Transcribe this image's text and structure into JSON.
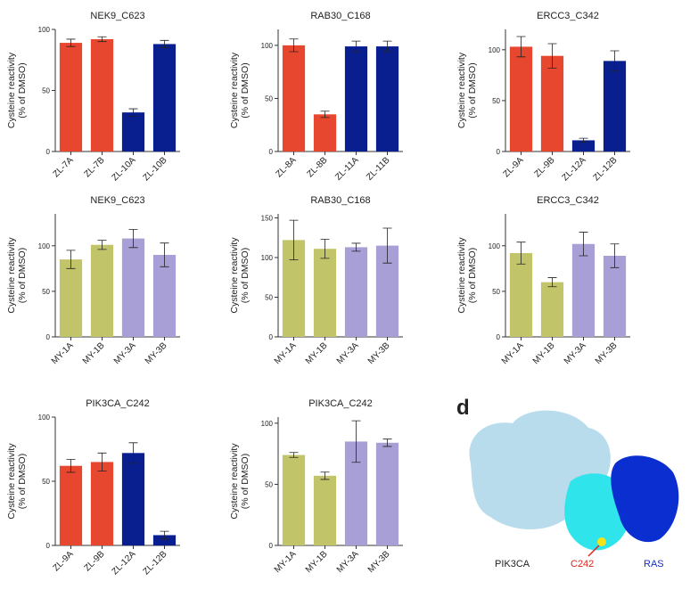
{
  "chart_data": [
    {
      "type": "bar",
      "title": "NEK9_C623",
      "ylabel": [
        "Cysteine reactivity",
        "(% of DMSO)"
      ],
      "categories": [
        "ZL-7A",
        "ZL-7B",
        "ZL-10A",
        "ZL-10B"
      ],
      "values": [
        89,
        92,
        32,
        88
      ],
      "errors": [
        3,
        2,
        3,
        3
      ],
      "colors": [
        "#e8472f",
        "#e8472f",
        "#0a1f8f",
        "#0a1f8f"
      ],
      "ylim": [
        0,
        100
      ],
      "yticks": [
        0,
        50,
        100
      ]
    },
    {
      "type": "bar",
      "title": "RAB30_C168",
      "ylabel": [
        "Cysteine reactivity",
        "(% of DMSO)"
      ],
      "categories": [
        "ZL-8A",
        "ZL-8B",
        "ZL-11A",
        "ZL-11B"
      ],
      "values": [
        100,
        35,
        99,
        99
      ],
      "errors": [
        6,
        3,
        5,
        5
      ],
      "colors": [
        "#e8472f",
        "#e8472f",
        "#0a1f8f",
        "#0a1f8f"
      ],
      "ylim": [
        0,
        115
      ],
      "yticks": [
        0,
        50,
        100
      ]
    },
    {
      "type": "bar",
      "title": "ERCC3_C342",
      "ylabel": [
        "Cysteine reactivity",
        "(% of DMSO)"
      ],
      "categories": [
        "ZL-9A",
        "ZL-9B",
        "ZL-12A",
        "ZL-12B"
      ],
      "values": [
        103,
        94,
        11,
        89
      ],
      "errors": [
        10,
        12,
        2,
        10
      ],
      "colors": [
        "#e8472f",
        "#e8472f",
        "#0a1f8f",
        "#0a1f8f"
      ],
      "ylim": [
        0,
        120
      ],
      "yticks": [
        0,
        50,
        100
      ]
    },
    {
      "type": "bar",
      "title": "NEK9_C623",
      "ylabel": [
        "Cysteine reactivity",
        "(% of DMSO)"
      ],
      "categories": [
        "MY-1A",
        "MY-1B",
        "MY-3A",
        "MY-3B"
      ],
      "values": [
        85,
        101,
        108,
        90
      ],
      "errors": [
        10,
        5,
        10,
        13
      ],
      "colors": [
        "#c2c46a",
        "#c2c46a",
        "#a89fd6",
        "#a89fd6"
      ],
      "ylim": [
        0,
        135
      ],
      "yticks": [
        0,
        50,
        100
      ]
    },
    {
      "type": "bar",
      "title": "RAB30_C168",
      "ylabel": [
        "Cysteine reactivity",
        "(% of DMSO)"
      ],
      "categories": [
        "MY-1A",
        "MY-1B",
        "MY-3A",
        "MY-3B"
      ],
      "values": [
        122,
        111,
        113,
        115
      ],
      "errors": [
        25,
        12,
        5,
        22
      ],
      "colors": [
        "#c2c46a",
        "#c2c46a",
        "#a89fd6",
        "#a89fd6"
      ],
      "ylim": [
        0,
        155
      ],
      "yticks": [
        0,
        50,
        100,
        150
      ]
    },
    {
      "type": "bar",
      "title": "ERCC3_C342",
      "ylabel": [
        "Cysteine reactivity",
        "(% of DMSO)"
      ],
      "categories": [
        "MY-1A",
        "MY-1B",
        "MY-3A",
        "MY-3B"
      ],
      "values": [
        92,
        60,
        102,
        89
      ],
      "errors": [
        12,
        5,
        13,
        13
      ],
      "colors": [
        "#c2c46a",
        "#c2c46a",
        "#a89fd6",
        "#a89fd6"
      ],
      "ylim": [
        0,
        135
      ],
      "yticks": [
        0,
        50,
        100
      ]
    },
    {
      "type": "bar",
      "title": "PIK3CA_C242",
      "ylabel": [
        "Cysteine reactivity",
        "(% of DMSO)"
      ],
      "categories": [
        "ZL-9A",
        "ZL-9B",
        "ZL-12A",
        "ZL-12B"
      ],
      "values": [
        62,
        65,
        72,
        8
      ],
      "errors": [
        5,
        7,
        8,
        3
      ],
      "colors": [
        "#e8472f",
        "#e8472f",
        "#0a1f8f",
        "#0a1f8f"
      ],
      "ylim": [
        0,
        100
      ],
      "yticks": [
        0,
        50,
        100
      ]
    },
    {
      "type": "bar",
      "title": "PIK3CA_C242",
      "ylabel": [
        "Cysteine reactivity",
        "(% of DMSO)"
      ],
      "categories": [
        "MY-1A",
        "MY-1B",
        "MY-3A",
        "MY-3B"
      ],
      "values": [
        74,
        57,
        85,
        84
      ],
      "errors": [
        2,
        3,
        17,
        3
      ],
      "colors": [
        "#c2c46a",
        "#c2c46a",
        "#a89fd6",
        "#a89fd6"
      ],
      "ylim": [
        0,
        105
      ],
      "yticks": [
        0,
        50,
        100
      ]
    }
  ],
  "panel_d": {
    "label": "d",
    "protein": "PIK3CA",
    "site": "C242",
    "partner": "RAS"
  }
}
